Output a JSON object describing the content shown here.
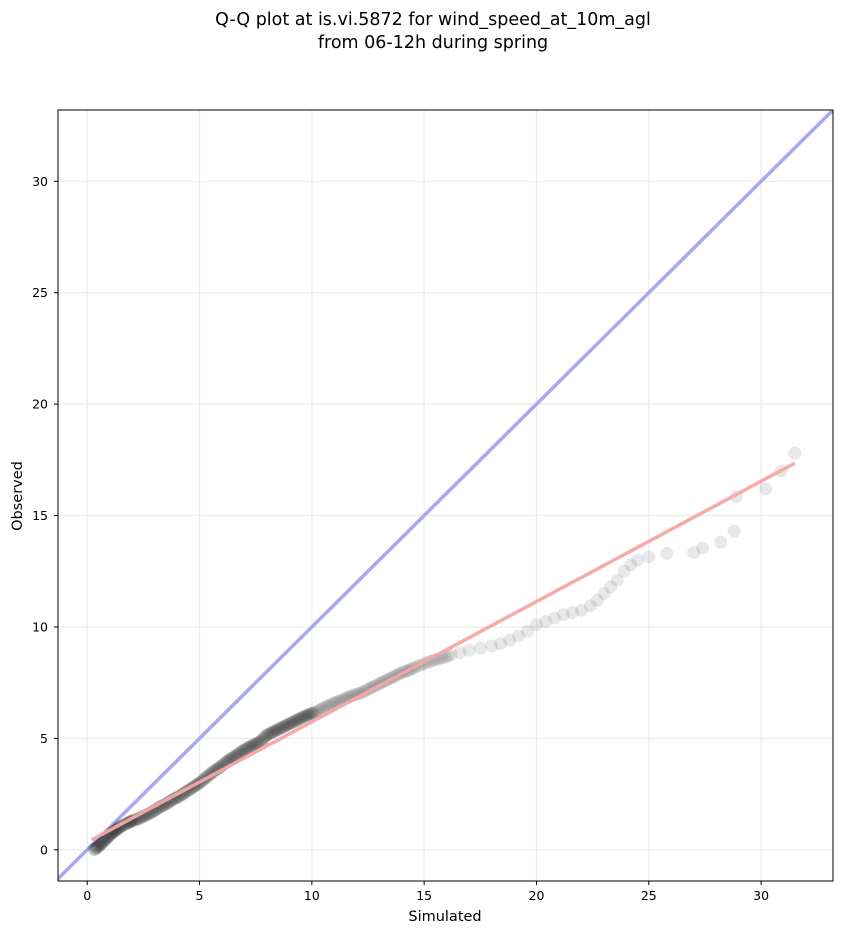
{
  "chart_data": {
    "type": "scatter",
    "title_line1": "Q-Q plot at is.vi.5872 for wind_speed_at_10m_agl",
    "title_line2": "from 06-12h during spring",
    "xlabel": "Simulated",
    "ylabel": "Observed",
    "xlim": [
      -1.3,
      33.2
    ],
    "ylim": [
      -1.4,
      33.2
    ],
    "xticks": [
      0,
      5,
      10,
      15,
      20,
      25,
      30
    ],
    "yticks": [
      0,
      5,
      10,
      15,
      20,
      25,
      30
    ],
    "xtick_labels": [
      "0",
      "5",
      "10",
      "15",
      "20",
      "25",
      "30"
    ],
    "ytick_labels": [
      "0",
      "5",
      "10",
      "15",
      "20",
      "25",
      "30"
    ],
    "grid": true,
    "reference_line": {
      "slope": 1,
      "intercept": 0,
      "color": "#a7a8f2"
    },
    "fit_line": {
      "x": [
        0.2,
        31.5
      ],
      "y": [
        0.45,
        17.35
      ],
      "color": "#f6a6a6"
    },
    "point_color": "#000000",
    "points": [
      [
        0.3,
        0.0
      ],
      [
        0.5,
        0.15
      ],
      [
        0.7,
        0.35
      ],
      [
        0.9,
        0.55
      ],
      [
        1.1,
        0.75
      ],
      [
        1.3,
        0.9
      ],
      [
        1.5,
        1.05
      ],
      [
        1.8,
        1.2
      ],
      [
        2.0,
        1.3
      ],
      [
        2.3,
        1.4
      ],
      [
        2.6,
        1.55
      ],
      [
        2.9,
        1.7
      ],
      [
        3.2,
        1.9
      ],
      [
        3.5,
        2.05
      ],
      [
        3.8,
        2.25
      ],
      [
        4.1,
        2.4
      ],
      [
        4.4,
        2.6
      ],
      [
        4.7,
        2.8
      ],
      [
        5.0,
        3.0
      ],
      [
        5.3,
        3.25
      ],
      [
        5.6,
        3.5
      ],
      [
        5.9,
        3.7
      ],
      [
        6.2,
        3.95
      ],
      [
        6.5,
        4.15
      ],
      [
        6.8,
        4.35
      ],
      [
        7.1,
        4.55
      ],
      [
        7.4,
        4.7
      ],
      [
        7.7,
        4.85
      ],
      [
        8.0,
        5.15
      ],
      [
        8.3,
        5.3
      ],
      [
        8.6,
        5.45
      ],
      [
        8.9,
        5.6
      ],
      [
        9.2,
        5.75
      ],
      [
        9.5,
        5.9
      ],
      [
        9.8,
        6.05
      ],
      [
        10.1,
        6.15
      ],
      [
        10.4,
        6.3
      ],
      [
        10.7,
        6.45
      ],
      [
        11.0,
        6.6
      ],
      [
        11.3,
        6.7
      ],
      [
        11.6,
        6.85
      ],
      [
        11.9,
        6.95
      ],
      [
        12.2,
        7.05
      ],
      [
        12.5,
        7.2
      ],
      [
        12.8,
        7.35
      ],
      [
        13.1,
        7.5
      ],
      [
        13.4,
        7.65
      ],
      [
        13.7,
        7.8
      ],
      [
        14.0,
        7.95
      ],
      [
        14.3,
        8.05
      ],
      [
        14.6,
        8.2
      ],
      [
        15.0,
        8.35
      ],
      [
        15.4,
        8.5
      ],
      [
        15.8,
        8.6
      ],
      [
        16.2,
        8.75
      ],
      [
        16.6,
        8.85
      ],
      [
        17.0,
        8.95
      ],
      [
        17.5,
        9.05
      ],
      [
        18.0,
        9.15
      ],
      [
        18.4,
        9.25
      ],
      [
        18.8,
        9.4
      ],
      [
        19.2,
        9.6
      ],
      [
        19.6,
        9.8
      ],
      [
        20.0,
        10.1
      ],
      [
        20.4,
        10.25
      ],
      [
        20.8,
        10.4
      ],
      [
        21.2,
        10.55
      ],
      [
        21.6,
        10.65
      ],
      [
        22.0,
        10.75
      ],
      [
        22.4,
        10.95
      ],
      [
        22.7,
        11.2
      ],
      [
        23.0,
        11.5
      ],
      [
        23.3,
        11.8
      ],
      [
        23.6,
        12.1
      ],
      [
        23.9,
        12.5
      ],
      [
        24.2,
        12.8
      ],
      [
        24.5,
        13.0
      ],
      [
        25.0,
        13.15
      ],
      [
        25.8,
        13.3
      ],
      [
        27.0,
        13.35
      ],
      [
        27.4,
        13.55
      ],
      [
        28.2,
        13.8
      ],
      [
        28.8,
        14.3
      ],
      [
        28.9,
        15.85
      ],
      [
        30.2,
        16.2
      ],
      [
        30.9,
        17.0
      ],
      [
        31.5,
        17.8
      ]
    ]
  }
}
